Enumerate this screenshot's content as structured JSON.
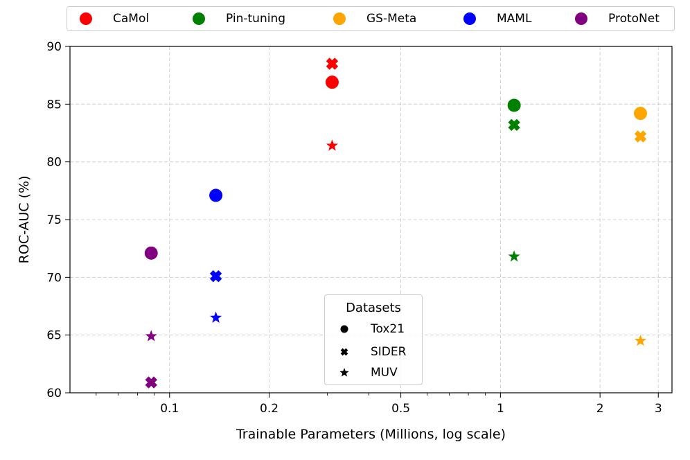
{
  "chart_data": {
    "type": "scatter",
    "xlabel": "Trainable Parameters (Millions, log scale)",
    "ylabel": "ROC-AUC (%)",
    "xscale": "log",
    "xlim": [
      0.05,
      3.3
    ],
    "ylim": [
      60,
      90
    ],
    "xticks": [
      0.1,
      0.2,
      0.5,
      1,
      2,
      3
    ],
    "xtick_labels": [
      "0.1",
      "0.2",
      "0.5",
      "1",
      "2",
      "3"
    ],
    "yticks": [
      60,
      65,
      70,
      75,
      80,
      85,
      90
    ],
    "ytick_labels": [
      "60",
      "65",
      "70",
      "75",
      "80",
      "85",
      "90"
    ],
    "grid": true,
    "legend_methods_title": "",
    "legend_datasets_title": "Datasets",
    "datasets": [
      {
        "name": "Tox21",
        "marker": "circle"
      },
      {
        "name": "SIDER",
        "marker": "cross"
      },
      {
        "name": "MUV",
        "marker": "star"
      }
    ],
    "series": [
      {
        "name": "CaMol",
        "color": "#ff0000",
        "x": 0.31,
        "values": {
          "Tox21": 86.9,
          "SIDER": 88.5,
          "MUV": 81.4
        }
      },
      {
        "name": "Pin-tuning",
        "color": "#008000",
        "x": 1.1,
        "values": {
          "Tox21": 84.9,
          "SIDER": 83.2,
          "MUV": 71.8
        }
      },
      {
        "name": "GS-Meta",
        "color": "#ffa500",
        "x": 2.65,
        "values": {
          "Tox21": 84.2,
          "SIDER": 82.2,
          "MUV": 64.5
        }
      },
      {
        "name": "MAML",
        "color": "#0000ff",
        "x": 0.138,
        "values": {
          "Tox21": 77.1,
          "SIDER": 70.1,
          "MUV": 66.5
        }
      },
      {
        "name": "ProtoNet",
        "color": "#800080",
        "x": 0.088,
        "values": {
          "Tox21": 72.1,
          "SIDER": 60.9,
          "MUV": 64.9
        }
      }
    ]
  }
}
